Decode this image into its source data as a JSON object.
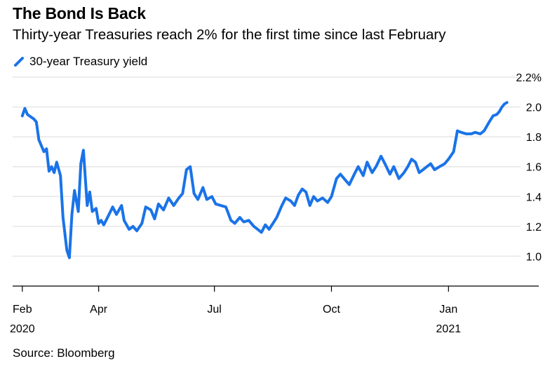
{
  "header": {
    "title": "The Bond Is Back",
    "subtitle": "Thirty-year Treasuries reach 2% for the first time since last February"
  },
  "legend": {
    "label": "30-year Treasury yield"
  },
  "footer": {
    "source": "Source: Bloomberg"
  },
  "colors": {
    "line": "#1a73e8",
    "grid": "#e6e6e6",
    "axis": "#000000"
  },
  "chart_data": {
    "type": "line",
    "title": "The Bond Is Back",
    "subtitle": "Thirty-year Treasuries reach 2% for the first time since last February",
    "xlabel": "",
    "ylabel": "",
    "ylim": [
      0.8,
      2.2
    ],
    "y_ticks": [
      "2.2%",
      "2.0",
      "1.8",
      "1.6",
      "1.4",
      "1.2",
      "1.0"
    ],
    "y_tick_values": [
      2.2,
      2.0,
      1.8,
      1.6,
      1.4,
      1.2,
      1.0
    ],
    "x_ticks": [
      {
        "label": "Feb",
        "sub": "2020",
        "date": "2020-02-01"
      },
      {
        "label": "Apr",
        "sub": "",
        "date": "2020-04-01"
      },
      {
        "label": "Jul",
        "sub": "",
        "date": "2020-07-01"
      },
      {
        "label": "Oct",
        "sub": "",
        "date": "2020-10-01"
      },
      {
        "label": "Jan",
        "sub": "2021",
        "date": "2021-01-01"
      }
    ],
    "xlim": [
      "2020-01-31",
      "2021-02-20"
    ],
    "grid": true,
    "legend_position": "top-left",
    "series": [
      {
        "name": "30-year Treasury yield",
        "points": [
          [
            "2020-02-01",
            1.94
          ],
          [
            "2020-02-03",
            1.99
          ],
          [
            "2020-02-05",
            1.95
          ],
          [
            "2020-02-10",
            1.92
          ],
          [
            "2020-02-12",
            1.9
          ],
          [
            "2020-02-14",
            1.78
          ],
          [
            "2020-02-18",
            1.7
          ],
          [
            "2020-02-20",
            1.72
          ],
          [
            "2020-02-22",
            1.57
          ],
          [
            "2020-02-24",
            1.6
          ],
          [
            "2020-02-26",
            1.56
          ],
          [
            "2020-02-28",
            1.63
          ],
          [
            "2020-03-02",
            1.54
          ],
          [
            "2020-03-04",
            1.26
          ],
          [
            "2020-03-07",
            1.04
          ],
          [
            "2020-03-09",
            0.99
          ],
          [
            "2020-03-11",
            1.28
          ],
          [
            "2020-03-13",
            1.44
          ],
          [
            "2020-03-16",
            1.3
          ],
          [
            "2020-03-18",
            1.62
          ],
          [
            "2020-03-20",
            1.71
          ],
          [
            "2020-03-23",
            1.34
          ],
          [
            "2020-03-25",
            1.43
          ],
          [
            "2020-03-27",
            1.3
          ],
          [
            "2020-03-30",
            1.32
          ],
          [
            "2020-04-01",
            1.22
          ],
          [
            "2020-04-03",
            1.24
          ],
          [
            "2020-04-05",
            1.21
          ],
          [
            "2020-04-08",
            1.26
          ],
          [
            "2020-04-12",
            1.33
          ],
          [
            "2020-04-15",
            1.28
          ],
          [
            "2020-04-19",
            1.34
          ],
          [
            "2020-04-21",
            1.24
          ],
          [
            "2020-04-25",
            1.18
          ],
          [
            "2020-04-28",
            1.2
          ],
          [
            "2020-05-01",
            1.17
          ],
          [
            "2020-05-05",
            1.22
          ],
          [
            "2020-05-08",
            1.33
          ],
          [
            "2020-05-12",
            1.31
          ],
          [
            "2020-05-15",
            1.25
          ],
          [
            "2020-05-18",
            1.35
          ],
          [
            "2020-05-22",
            1.31
          ],
          [
            "2020-05-26",
            1.39
          ],
          [
            "2020-05-30",
            1.34
          ],
          [
            "2020-06-03",
            1.39
          ],
          [
            "2020-06-06",
            1.42
          ],
          [
            "2020-06-09",
            1.58
          ],
          [
            "2020-06-12",
            1.6
          ],
          [
            "2020-06-15",
            1.42
          ],
          [
            "2020-06-18",
            1.38
          ],
          [
            "2020-06-22",
            1.46
          ],
          [
            "2020-06-25",
            1.38
          ],
          [
            "2020-06-29",
            1.4
          ],
          [
            "2020-07-02",
            1.35
          ],
          [
            "2020-07-06",
            1.34
          ],
          [
            "2020-07-10",
            1.33
          ],
          [
            "2020-07-14",
            1.24
          ],
          [
            "2020-07-17",
            1.22
          ],
          [
            "2020-07-21",
            1.26
          ],
          [
            "2020-07-24",
            1.23
          ],
          [
            "2020-07-28",
            1.24
          ],
          [
            "2020-08-01",
            1.2
          ],
          [
            "2020-08-04",
            1.18
          ],
          [
            "2020-08-07",
            1.16
          ],
          [
            "2020-08-10",
            1.21
          ],
          [
            "2020-08-13",
            1.18
          ],
          [
            "2020-08-16",
            1.22
          ],
          [
            "2020-08-19",
            1.26
          ],
          [
            "2020-08-23",
            1.34
          ],
          [
            "2020-08-26",
            1.39
          ],
          [
            "2020-08-30",
            1.37
          ],
          [
            "2020-09-02",
            1.34
          ],
          [
            "2020-09-05",
            1.41
          ],
          [
            "2020-09-08",
            1.45
          ],
          [
            "2020-09-11",
            1.43
          ],
          [
            "2020-09-14",
            1.34
          ],
          [
            "2020-09-17",
            1.4
          ],
          [
            "2020-09-20",
            1.37
          ],
          [
            "2020-09-24",
            1.39
          ],
          [
            "2020-09-28",
            1.36
          ],
          [
            "2020-10-01",
            1.4
          ],
          [
            "2020-10-05",
            1.52
          ],
          [
            "2020-10-08",
            1.55
          ],
          [
            "2020-10-12",
            1.51
          ],
          [
            "2020-10-15",
            1.48
          ],
          [
            "2020-10-19",
            1.55
          ],
          [
            "2020-10-22",
            1.6
          ],
          [
            "2020-10-26",
            1.54
          ],
          [
            "2020-10-29",
            1.63
          ],
          [
            "2020-11-02",
            1.56
          ],
          [
            "2020-11-05",
            1.6
          ],
          [
            "2020-11-09",
            1.67
          ],
          [
            "2020-11-12",
            1.62
          ],
          [
            "2020-11-16",
            1.55
          ],
          [
            "2020-11-19",
            1.6
          ],
          [
            "2020-11-23",
            1.52
          ],
          [
            "2020-11-27",
            1.56
          ],
          [
            "2020-11-30",
            1.6
          ],
          [
            "2020-12-03",
            1.65
          ],
          [
            "2020-12-06",
            1.63
          ],
          [
            "2020-12-09",
            1.56
          ],
          [
            "2020-12-12",
            1.58
          ],
          [
            "2020-12-15",
            1.6
          ],
          [
            "2020-12-18",
            1.62
          ],
          [
            "2020-12-21",
            1.58
          ],
          [
            "2020-12-25",
            1.6
          ],
          [
            "2020-12-29",
            1.62
          ],
          [
            "2021-01-01",
            1.65
          ],
          [
            "2021-01-05",
            1.7
          ],
          [
            "2021-01-08",
            1.84
          ],
          [
            "2021-01-11",
            1.83
          ],
          [
            "2021-01-15",
            1.82
          ],
          [
            "2021-01-19",
            1.82
          ],
          [
            "2021-01-22",
            1.83
          ],
          [
            "2021-01-26",
            1.82
          ],
          [
            "2021-01-29",
            1.84
          ],
          [
            "2021-02-02",
            1.9
          ],
          [
            "2021-02-05",
            1.94
          ],
          [
            "2021-02-08",
            1.95
          ],
          [
            "2021-02-10",
            1.97
          ],
          [
            "2021-02-12",
            2.0
          ],
          [
            "2021-02-14",
            2.02
          ],
          [
            "2021-02-16",
            2.03
          ]
        ]
      }
    ]
  }
}
